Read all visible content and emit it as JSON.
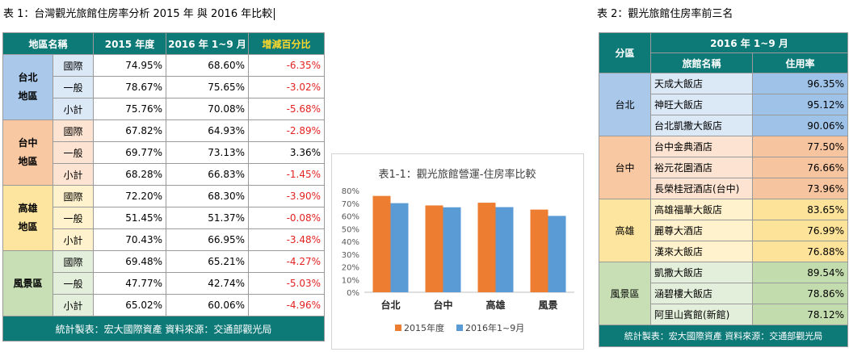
{
  "title1": "表 1：台灣觀光旅館住房率分析  2015 年  與 2016 年比較",
  "title2": "表 2：觀光旅館住房率前三名",
  "table1": {
    "headers": [
      "地區名稱",
      "2015 年度",
      "2016 年 1~9 月",
      "增減百分比"
    ],
    "regions": [
      {
        "name": "台北\n地區",
        "rows": [
          {
            "type": "國際",
            "y2015": "74.95%",
            "y2016": "68.60%",
            "change": "-6.35%",
            "neg": true
          },
          {
            "type": "一般",
            "y2015": "78.67%",
            "y2016": "75.65%",
            "change": "-3.02%",
            "neg": true
          },
          {
            "type": "小計",
            "y2015": "75.76%",
            "y2016": "70.08%",
            "change": "-5.68%",
            "neg": true
          }
        ]
      },
      {
        "name": "台中\n地區",
        "rows": [
          {
            "type": "國際",
            "y2015": "67.82%",
            "y2016": "64.93%",
            "change": "-2.89%",
            "neg": true
          },
          {
            "type": "一般",
            "y2015": "69.77%",
            "y2016": "73.13%",
            "change": "3.36%",
            "neg": false
          },
          {
            "type": "小計",
            "y2015": "68.28%",
            "y2016": "66.83%",
            "change": "-1.45%",
            "neg": true
          }
        ]
      },
      {
        "name": "高雄\n地區",
        "rows": [
          {
            "type": "國際",
            "y2015": "72.20%",
            "y2016": "68.30%",
            "change": "-3.90%",
            "neg": true
          },
          {
            "type": "一般",
            "y2015": "51.45%",
            "y2016": "51.37%",
            "change": "-0.08%",
            "neg": true
          },
          {
            "type": "小計",
            "y2015": "70.43%",
            "y2016": "66.95%",
            "change": "-3.48%",
            "neg": true
          }
        ]
      },
      {
        "name": "風景區",
        "rows": [
          {
            "type": "國際",
            "y2015": "69.48%",
            "y2016": "65.21%",
            "change": "-4.27%",
            "neg": true
          },
          {
            "type": "一般",
            "y2015": "47.77%",
            "y2016": "42.74%",
            "change": "-5.03%",
            "neg": true
          },
          {
            "type": "小計",
            "y2015": "65.02%",
            "y2016": "60.06%",
            "change": "-4.96%",
            "neg": true
          }
        ]
      }
    ],
    "footer": "統計製表：宏大國際資產      資料來源：交通部觀光局"
  },
  "table2": {
    "header_region": "分區",
    "header_period": "2016 年 1~9 月",
    "header_name": "旅館名稱",
    "header_rate": "住用率",
    "regions": [
      {
        "name": "台北",
        "hotels": [
          {
            "name": "天成大飯店",
            "rate": "96.35%"
          },
          {
            "name": "神旺大飯店",
            "rate": "95.12%"
          },
          {
            "name": "台北凱撒大飯店",
            "rate": "90.06%"
          }
        ]
      },
      {
        "name": "台中",
        "hotels": [
          {
            "name": "台中金典酒店",
            "rate": "77.50%"
          },
          {
            "name": "裕元花園酒店",
            "rate": "76.66%"
          },
          {
            "name": "長榮桂冠酒店(台中)",
            "rate": "73.96%"
          }
        ]
      },
      {
        "name": "高雄",
        "hotels": [
          {
            "name": "高雄福華大飯店",
            "rate": "83.65%"
          },
          {
            "name": "麗尊大酒店",
            "rate": "76.99%"
          },
          {
            "name": "漢來大飯店",
            "rate": "76.88%"
          }
        ]
      },
      {
        "name": "風景區",
        "hotels": [
          {
            "name": "凱撒大飯店",
            "rate": "89.54%"
          },
          {
            "name": "涵碧樓大飯店",
            "rate": "78.86%"
          },
          {
            "name": "阿里山賓館(新館)",
            "rate": "78.12%"
          }
        ]
      }
    ],
    "footer": "統計製表：宏大國際資產      資料來源：交通部觀光局"
  },
  "chart_data": {
    "type": "bar",
    "title": "表1-1：觀光旅館營運-住房率比較",
    "categories": [
      "台北",
      "台中",
      "高雄",
      "風景"
    ],
    "series": [
      {
        "name": "2015年度",
        "values": [
          75.76,
          68.28,
          70.43,
          65.02
        ],
        "color": "#ed7d31"
      },
      {
        "name": "2016年1~9月",
        "values": [
          70.08,
          66.83,
          66.95,
          60.06
        ],
        "color": "#5b9bd5"
      }
    ],
    "ylim": [
      0,
      80
    ],
    "yticks": [
      "0%",
      "10%",
      "20%",
      "30%",
      "40%",
      "50%",
      "60%",
      "70%",
      "80%"
    ],
    "legend": "bottom",
    "grid": false
  }
}
